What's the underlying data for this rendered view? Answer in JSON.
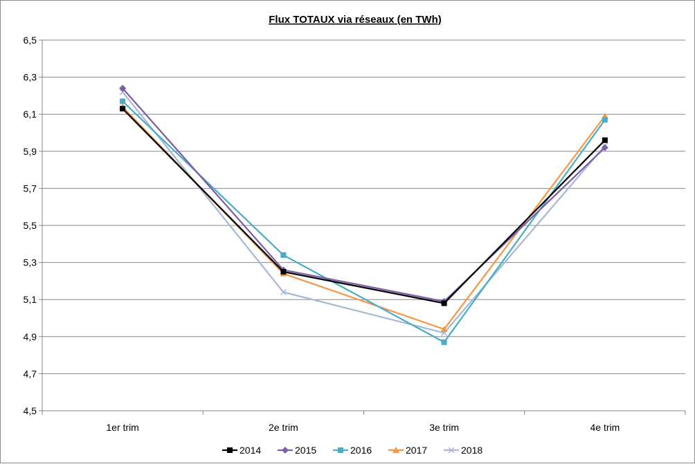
{
  "chart_data": {
    "type": "line",
    "title": "Flux TOTAUX via réseaux (en TWh)",
    "xlabel": "",
    "ylabel": "",
    "categories": [
      "1er trim",
      "2e trim",
      "3e trim",
      "4e trim"
    ],
    "ylim": [
      4.5,
      6.5
    ],
    "yticks": [
      "4,5",
      "4,7",
      "4,9",
      "5,1",
      "5,3",
      "5,5",
      "5,7",
      "5,9",
      "6,1",
      "6,3",
      "6,5"
    ],
    "grid": true,
    "legend_position": "bottom",
    "series": [
      {
        "name": "2014",
        "values": [
          6.13,
          5.25,
          5.08,
          5.96
        ],
        "color": "#000000",
        "marker": "square"
      },
      {
        "name": "2015",
        "values": [
          6.24,
          5.26,
          5.09,
          5.92
        ],
        "color": "#7b5ea7",
        "marker": "diamond"
      },
      {
        "name": "2016",
        "values": [
          6.17,
          5.34,
          4.87,
          6.07
        ],
        "color": "#4bacc6",
        "marker": "square"
      },
      {
        "name": "2017",
        "values": [
          6.14,
          5.24,
          4.94,
          6.09
        ],
        "color": "#f79646",
        "marker": "triangle"
      },
      {
        "name": "2018",
        "values": [
          6.22,
          5.14,
          4.92,
          5.93
        ],
        "color": "#a6b8d6",
        "marker": "x"
      }
    ]
  }
}
